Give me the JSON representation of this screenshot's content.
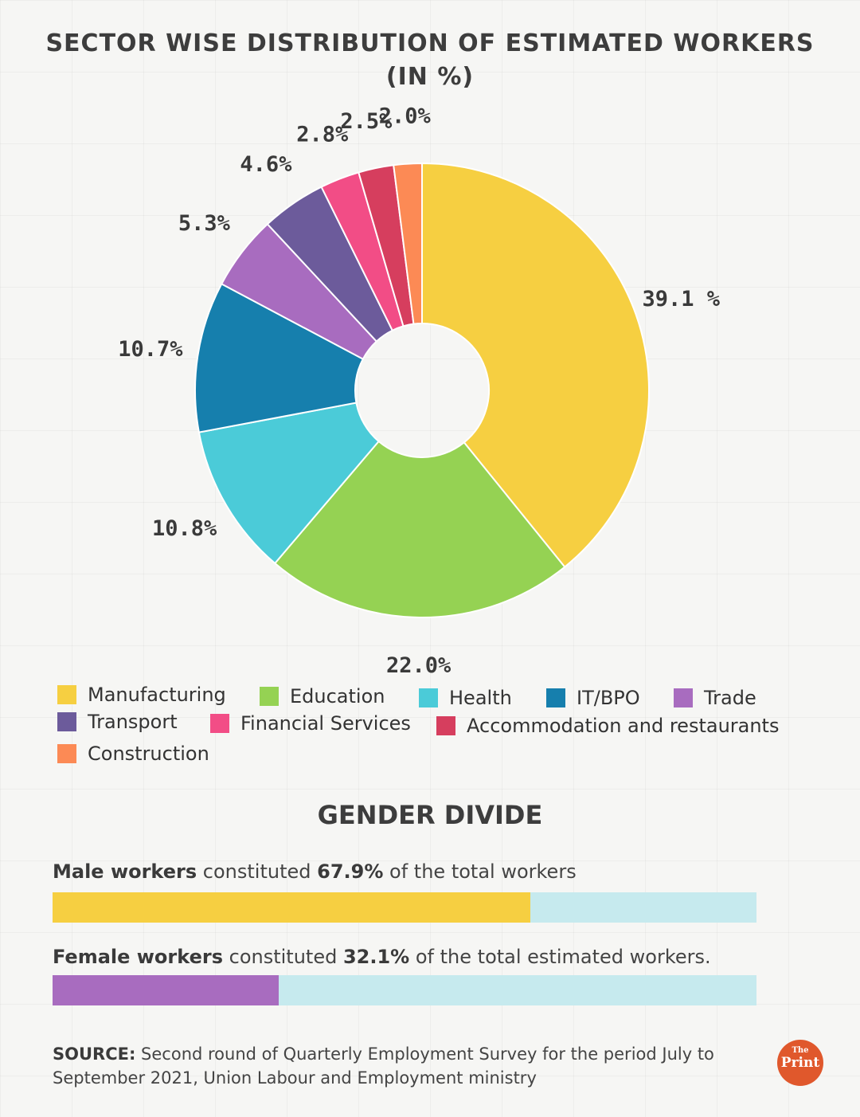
{
  "title_line1": "Sector wise distribution of estimated workers",
  "title_line2": "(in %)",
  "chart_data": {
    "type": "pie",
    "categories": [
      "Manufacturing",
      "Education",
      "Health",
      "IT/BPO",
      "Trade",
      "Transport",
      "Financial Services",
      "Accommodation and restaurants",
      "Construction"
    ],
    "values": [
      39.1,
      22.0,
      10.8,
      10.7,
      5.3,
      4.6,
      2.8,
      2.5,
      2.0
    ],
    "data_labels": [
      "39.1 %",
      "22.0%",
      "10.8%",
      "10.7%",
      "5.3%",
      "4.6%",
      "2.8%",
      "2.5%",
      "2.0%"
    ],
    "colors": [
      "#f6cf41",
      "#95d253",
      "#4bcbd8",
      "#167fad",
      "#a86cbf",
      "#6c5b9b",
      "#f24d86",
      "#d63e5e",
      "#fc8a55"
    ],
    "donut": true,
    "legend_position": "bottom"
  },
  "gender": {
    "title": "Gender divide",
    "male": {
      "bold": "Male workers",
      "mid": "constituted",
      "pct_text": "67.9%",
      "rest": "of the total workers",
      "value": 67.9,
      "color": "#f6cf41"
    },
    "female": {
      "bold": "Female workers",
      "mid": "constituted",
      "pct_text": "32.1%",
      "rest": "of the total estimated workers.",
      "value": 32.1,
      "color": "#a86cbf"
    }
  },
  "source": {
    "label": "SOURCE:",
    "text": "Second round of Quarterly Employment Survey for the period July to September 2021, Union Labour and Employment ministry"
  },
  "logo": {
    "small": "The",
    "big": "Print"
  }
}
